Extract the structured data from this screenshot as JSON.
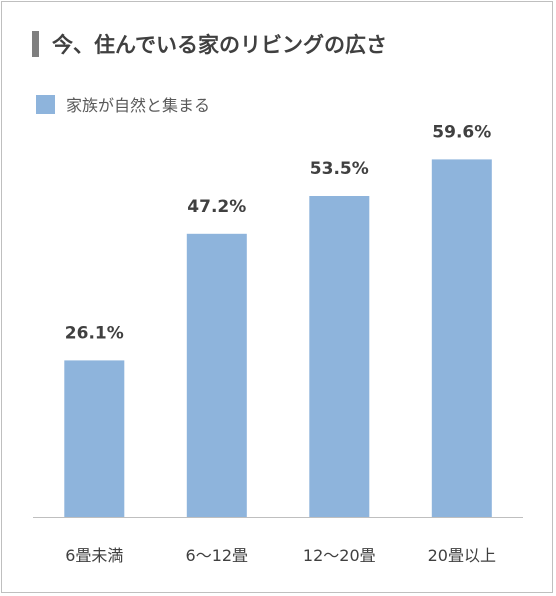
{
  "chart_data": {
    "type": "bar",
    "title": "今、住んでいる家のリビングの広さ",
    "categories": [
      "6畳未満",
      "6～12畳",
      "12～20畳",
      "20畳以上"
    ],
    "series": [
      {
        "name": "家族が自然と集まる",
        "values": [
          26.1,
          47.2,
          53.5,
          59.6
        ],
        "labels": [
          "26.1%",
          "47.2%",
          "53.5%",
          "59.6%"
        ]
      }
    ],
    "ylim": [
      0,
      60
    ],
    "grid": false,
    "legend_position": "top-left",
    "colors": {
      "bar": "#8EB4DC",
      "axis": "#bfbfbf",
      "title_marker": "#7f7f7f"
    }
  }
}
